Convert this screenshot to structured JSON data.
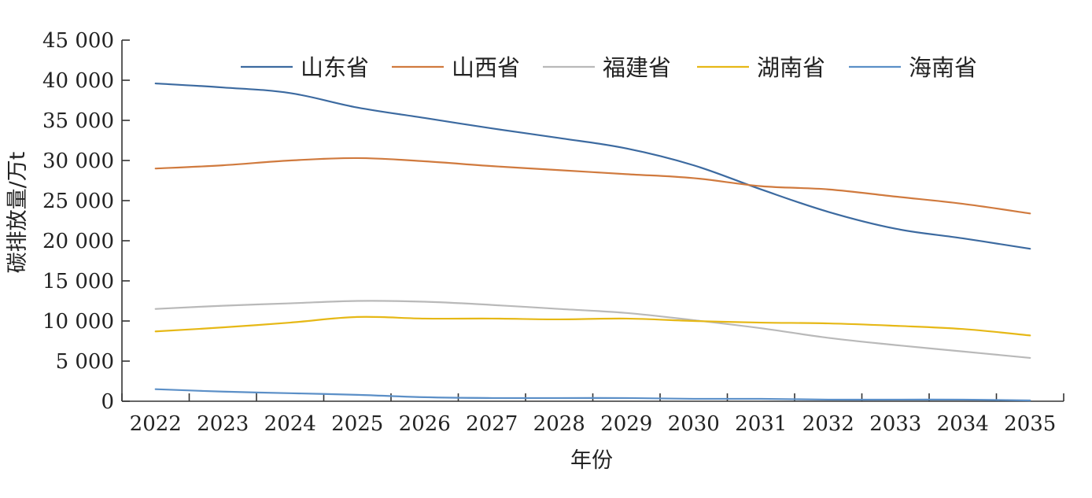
{
  "chart_data": {
    "type": "line",
    "xlabel": "年份",
    "ylabel": "碳排放量/万t",
    "x_tick_labels": [
      "2022",
      "2023",
      "2024",
      "2025",
      "2026",
      "2027",
      "2028",
      "2029",
      "2030",
      "2031",
      "2032",
      "2033",
      "2034",
      "2035"
    ],
    "y_tick_labels": [
      "0",
      "5 000",
      "10 000",
      "15 000",
      "20 000",
      "25 000",
      "30 000",
      "35 000",
      "40 000",
      "45 000"
    ],
    "ylim": [
      0,
      45000
    ],
    "grid": false,
    "legend_position": "top",
    "x": [
      2021.5,
      2022.5,
      2023.5,
      2024.5,
      2025.5,
      2026.5,
      2027.5,
      2028.5,
      2029.5,
      2030.5,
      2031.5,
      2032.5,
      2033.5,
      2034.5
    ],
    "series": [
      {
        "name": "山东省",
        "color": "#3c6aa0",
        "values": [
          39600,
          39100,
          38400,
          36600,
          35300,
          34000,
          32800,
          31500,
          29400,
          26400,
          23600,
          21500,
          20300,
          19000
        ]
      },
      {
        "name": "山西省",
        "color": "#d07a3e",
        "values": [
          29000,
          29400,
          30000,
          30300,
          29900,
          29300,
          28800,
          28300,
          27800,
          26800,
          26400,
          25500,
          24600,
          23400
        ]
      },
      {
        "name": "福建省",
        "color": "#b9b9b9",
        "values": [
          11500,
          11900,
          12200,
          12500,
          12400,
          12000,
          11500,
          11000,
          10100,
          9100,
          7900,
          7000,
          6200,
          5400
        ]
      },
      {
        "name": "湖南省",
        "color": "#e6b816",
        "values": [
          8700,
          9200,
          9800,
          10500,
          10300,
          10300,
          10200,
          10300,
          10000,
          9800,
          9700,
          9400,
          9000,
          8200
        ]
      },
      {
        "name": "海南省",
        "color": "#5b8fc7",
        "values": [
          1500,
          1200,
          1000,
          800,
          500,
          400,
          400,
          400,
          300,
          300,
          200,
          200,
          200,
          100
        ]
      }
    ]
  }
}
